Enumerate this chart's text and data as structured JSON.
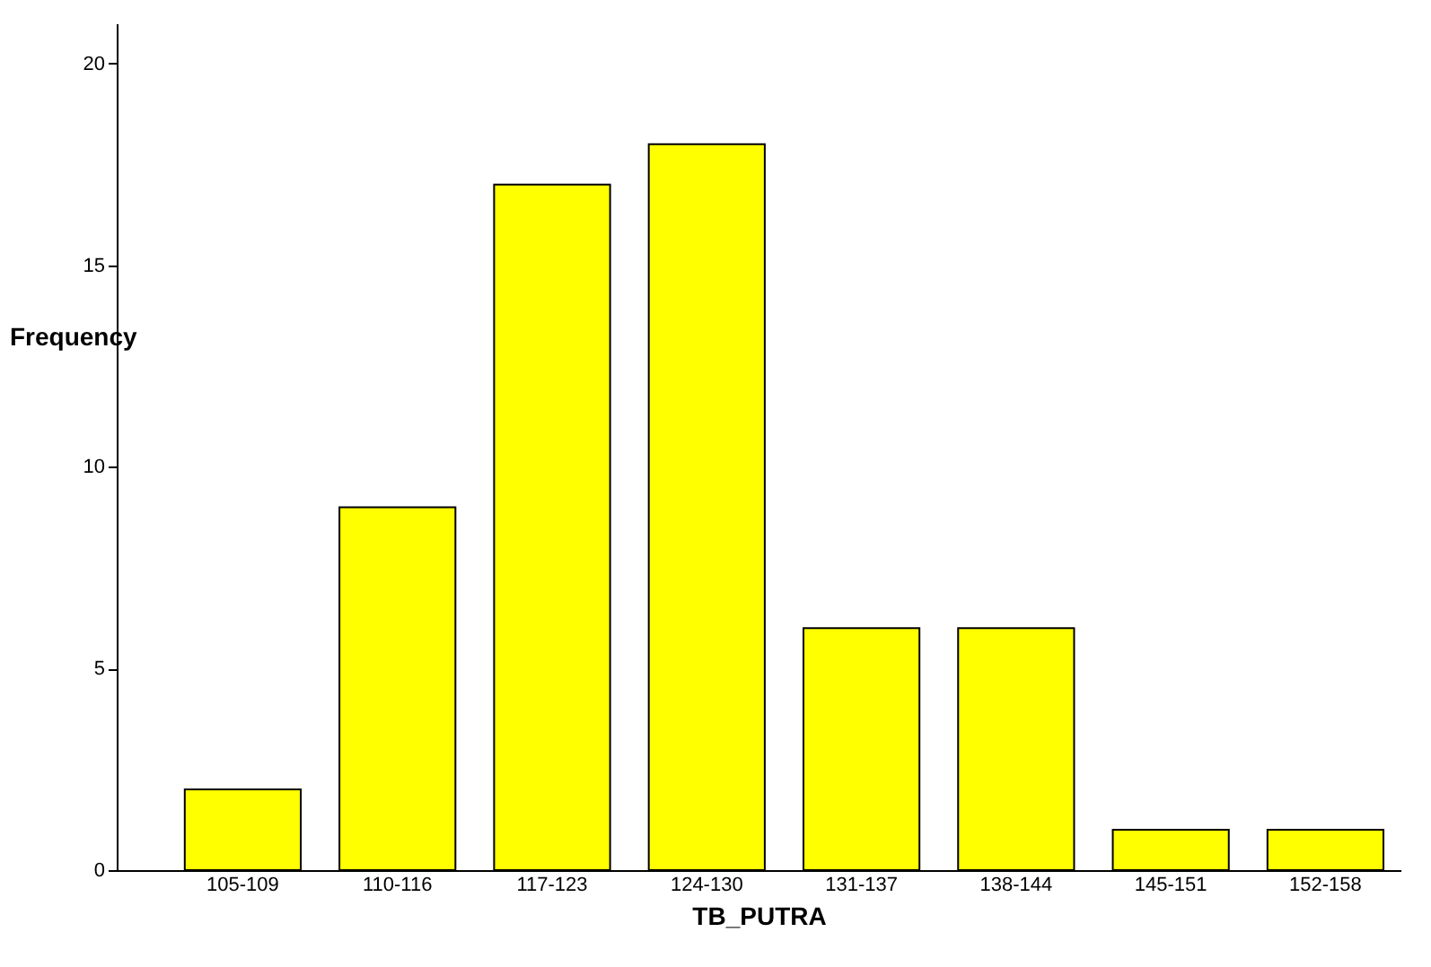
{
  "chart_data": {
    "type": "bar",
    "xlabel": "TB_PUTRA",
    "ylabel": "Frequency",
    "categories": [
      "105-109",
      "110-116",
      "117-123",
      "124-130",
      "131-137",
      "138-144",
      "145-151",
      "152-158"
    ],
    "values": [
      2,
      9,
      17,
      18,
      6,
      6,
      1,
      1
    ],
    "color": "#ffff00",
    "ylim": [
      0,
      21
    ],
    "yticks": [
      0,
      5,
      10,
      15,
      20
    ],
    "grid": false
  }
}
